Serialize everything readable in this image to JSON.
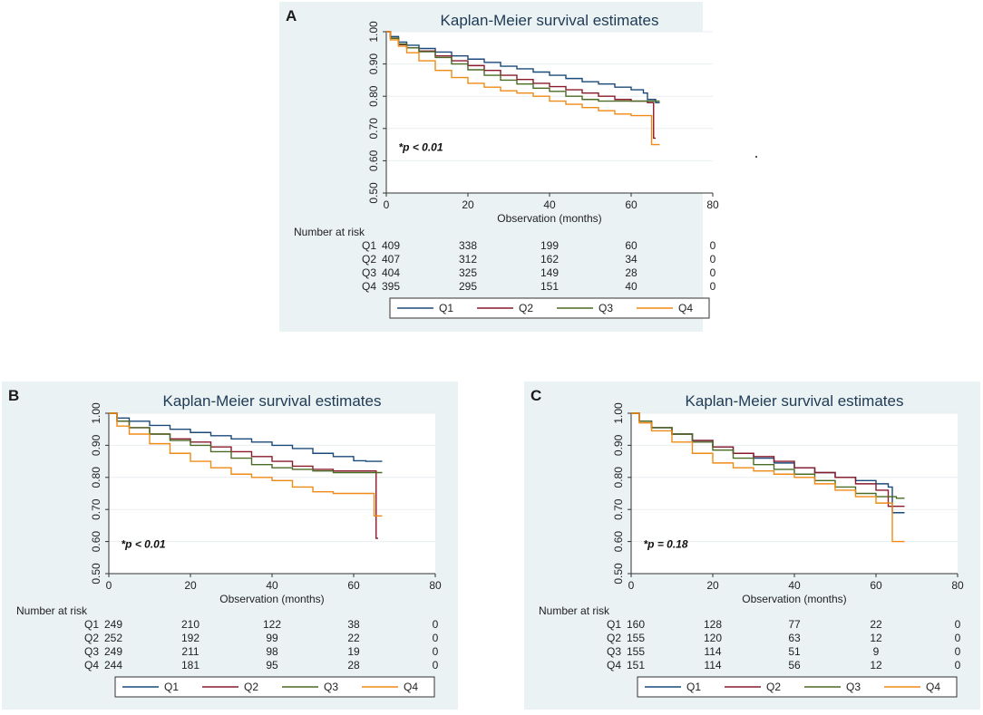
{
  "colors": {
    "Q1": "#1a4a7a",
    "Q2": "#8a1a2a",
    "Q3": "#4a6b24",
    "Q4": "#f08a14",
    "panel_bg": "#eaf2f3",
    "plot_bg": "#ffffff"
  },
  "chart_data": [
    {
      "panel": "A",
      "type": "line",
      "title": "Kaplan-Meier survival estimates",
      "xlabel": "Observation (months)",
      "ylabel": "",
      "xlim": [
        0,
        80
      ],
      "ylim": [
        0.5,
        1.0
      ],
      "xticks": [
        "0",
        "20",
        "40",
        "60",
        "80"
      ],
      "yticks": [
        "0.50",
        "0.60",
        "0.70",
        "0.80",
        "0.90",
        "1.00"
      ],
      "annotation": "*p < 0.01",
      "annotation_pos": [
        3,
        0.63
      ],
      "series": [
        {
          "name": "Q1",
          "x": [
            0,
            1,
            3,
            5,
            8,
            12,
            16,
            20,
            24,
            28,
            32,
            36,
            40,
            44,
            48,
            52,
            56,
            60,
            63,
            64,
            66,
            67
          ],
          "y": [
            1.0,
            0.985,
            0.968,
            0.958,
            0.948,
            0.937,
            0.925,
            0.915,
            0.905,
            0.893,
            0.885,
            0.875,
            0.865,
            0.855,
            0.845,
            0.838,
            0.828,
            0.82,
            0.81,
            0.79,
            0.78,
            0.78
          ]
        },
        {
          "name": "Q2",
          "x": [
            0,
            1,
            3,
            5,
            8,
            12,
            16,
            20,
            24,
            28,
            32,
            36,
            40,
            44,
            48,
            52,
            56,
            60,
            64,
            65,
            65.5,
            66
          ],
          "y": [
            1.0,
            0.98,
            0.96,
            0.95,
            0.94,
            0.925,
            0.91,
            0.895,
            0.88,
            0.865,
            0.852,
            0.84,
            0.83,
            0.82,
            0.81,
            0.8,
            0.79,
            0.785,
            0.78,
            0.78,
            0.67,
            0.67
          ]
        },
        {
          "name": "Q3",
          "x": [
            0,
            1,
            3,
            5,
            8,
            12,
            16,
            20,
            24,
            28,
            32,
            36,
            40,
            44,
            48,
            52,
            56,
            60,
            64,
            67
          ],
          "y": [
            1.0,
            0.98,
            0.962,
            0.95,
            0.938,
            0.92,
            0.9,
            0.882,
            0.865,
            0.85,
            0.838,
            0.825,
            0.815,
            0.8,
            0.79,
            0.785,
            0.785,
            0.785,
            0.785,
            0.785
          ]
        },
        {
          "name": "Q4",
          "x": [
            0,
            1,
            3,
            5,
            8,
            12,
            16,
            20,
            24,
            28,
            32,
            36,
            40,
            44,
            48,
            52,
            56,
            60,
            64,
            65,
            67
          ],
          "y": [
            1.0,
            0.975,
            0.955,
            0.935,
            0.91,
            0.88,
            0.858,
            0.84,
            0.828,
            0.817,
            0.81,
            0.8,
            0.785,
            0.775,
            0.765,
            0.755,
            0.745,
            0.74,
            0.74,
            0.65,
            0.65
          ]
        }
      ],
      "risk_table": {
        "header": "Number at risk",
        "rows": [
          {
            "label": "Q1",
            "values": [
              "409",
              "338",
              "199",
              "60",
              "0"
            ]
          },
          {
            "label": "Q2",
            "values": [
              "407",
              "312",
              "162",
              "34",
              "0"
            ]
          },
          {
            "label": "Q3",
            "values": [
              "404",
              "325",
              "149",
              "28",
              "0"
            ]
          },
          {
            "label": "Q4",
            "values": [
              "395",
              "295",
              "151",
              "40",
              "0"
            ]
          }
        ]
      },
      "legend": [
        "Q1",
        "Q2",
        "Q3",
        "Q4"
      ]
    },
    {
      "panel": "B",
      "type": "line",
      "title": "Kaplan-Meier survival estimates",
      "xlabel": "Observation (months)",
      "ylabel": "",
      "xlim": [
        0,
        80
      ],
      "ylim": [
        0.5,
        1.0
      ],
      "xticks": [
        "0",
        "20",
        "40",
        "60",
        "80"
      ],
      "yticks": [
        "0.50",
        "0.60",
        "0.70",
        "0.80",
        "0.90",
        "1.00"
      ],
      "annotation": "*p < 0.01",
      "annotation_pos": [
        3,
        0.58
      ],
      "series": [
        {
          "name": "Q1",
          "x": [
            0,
            2,
            5,
            10,
            15,
            20,
            25,
            30,
            35,
            40,
            45,
            50,
            55,
            60,
            63,
            67
          ],
          "y": [
            1.0,
            0.985,
            0.975,
            0.962,
            0.95,
            0.94,
            0.93,
            0.92,
            0.91,
            0.9,
            0.89,
            0.875,
            0.865,
            0.852,
            0.85,
            0.85
          ]
        },
        {
          "name": "Q2",
          "x": [
            0,
            2,
            5,
            10,
            15,
            20,
            25,
            30,
            35,
            40,
            45,
            50,
            55,
            60,
            65,
            65.5,
            66
          ],
          "y": [
            1.0,
            0.975,
            0.955,
            0.935,
            0.92,
            0.91,
            0.895,
            0.88,
            0.865,
            0.85,
            0.835,
            0.825,
            0.82,
            0.82,
            0.82,
            0.61,
            0.61
          ]
        },
        {
          "name": "Q3",
          "x": [
            0,
            2,
            5,
            10,
            15,
            20,
            25,
            30,
            35,
            40,
            45,
            50,
            55,
            60,
            65,
            67
          ],
          "y": [
            1.0,
            0.975,
            0.955,
            0.935,
            0.915,
            0.9,
            0.88,
            0.86,
            0.84,
            0.83,
            0.825,
            0.82,
            0.815,
            0.815,
            0.815,
            0.815
          ]
        },
        {
          "name": "Q4",
          "x": [
            0,
            2,
            5,
            10,
            15,
            20,
            25,
            30,
            35,
            40,
            45,
            50,
            55,
            60,
            64,
            65,
            67
          ],
          "y": [
            1.0,
            0.96,
            0.935,
            0.905,
            0.875,
            0.85,
            0.83,
            0.81,
            0.8,
            0.79,
            0.77,
            0.755,
            0.75,
            0.75,
            0.75,
            0.68,
            0.68
          ]
        }
      ],
      "risk_table": {
        "header": "Number at risk",
        "rows": [
          {
            "label": "Q1",
            "values": [
              "249",
              "210",
              "122",
              "38",
              "0"
            ]
          },
          {
            "label": "Q2",
            "values": [
              "252",
              "192",
              "99",
              "22",
              "0"
            ]
          },
          {
            "label": "Q3",
            "values": [
              "249",
              "211",
              "98",
              "19",
              "0"
            ]
          },
          {
            "label": "Q4",
            "values": [
              "244",
              "181",
              "95",
              "28",
              "0"
            ]
          }
        ]
      },
      "legend": [
        "Q1",
        "Q2",
        "Q3",
        "Q4"
      ]
    },
    {
      "panel": "C",
      "type": "line",
      "title": "Kaplan-Meier survival estimates",
      "xlabel": "Observation (months)",
      "ylabel": "",
      "xlim": [
        0,
        80
      ],
      "ylim": [
        0.5,
        1.0
      ],
      "xticks": [
        "0",
        "20",
        "40",
        "60",
        "80"
      ],
      "yticks": [
        "0.50",
        "0.60",
        "0.70",
        "0.80",
        "0.90",
        "1.00"
      ],
      "annotation": "*p = 0.18",
      "annotation_pos": [
        3,
        0.58
      ],
      "series": [
        {
          "name": "Q1",
          "x": [
            0,
            2,
            5,
            10,
            15,
            20,
            25,
            30,
            35,
            40,
            45,
            50,
            55,
            60,
            63,
            64,
            67
          ],
          "y": [
            1.0,
            0.975,
            0.955,
            0.935,
            0.915,
            0.895,
            0.875,
            0.86,
            0.845,
            0.83,
            0.815,
            0.8,
            0.79,
            0.78,
            0.77,
            0.69,
            0.69
          ]
        },
        {
          "name": "Q2",
          "x": [
            0,
            2,
            5,
            10,
            15,
            20,
            25,
            30,
            35,
            40,
            45,
            50,
            55,
            60,
            62,
            63,
            64,
            67
          ],
          "y": [
            1.0,
            0.975,
            0.955,
            0.935,
            0.915,
            0.895,
            0.875,
            0.865,
            0.85,
            0.83,
            0.815,
            0.8,
            0.78,
            0.76,
            0.76,
            0.71,
            0.71,
            0.71
          ]
        },
        {
          "name": "Q3",
          "x": [
            0,
            2,
            5,
            10,
            15,
            20,
            25,
            30,
            35,
            40,
            45,
            50,
            55,
            60,
            65,
            67
          ],
          "y": [
            1.0,
            0.975,
            0.955,
            0.935,
            0.91,
            0.885,
            0.86,
            0.84,
            0.825,
            0.81,
            0.79,
            0.77,
            0.75,
            0.74,
            0.735,
            0.735
          ]
        },
        {
          "name": "Q4",
          "x": [
            0,
            2,
            5,
            10,
            15,
            20,
            25,
            30,
            35,
            40,
            45,
            50,
            55,
            60,
            63,
            64,
            67
          ],
          "y": [
            1.0,
            0.97,
            0.945,
            0.91,
            0.875,
            0.845,
            0.83,
            0.82,
            0.81,
            0.8,
            0.78,
            0.76,
            0.74,
            0.72,
            0.72,
            0.6,
            0.6
          ]
        }
      ],
      "risk_table": {
        "header": "Number at risk",
        "rows": [
          {
            "label": "Q1",
            "values": [
              "160",
              "128",
              "77",
              "22",
              "0"
            ]
          },
          {
            "label": "Q2",
            "values": [
              "155",
              "120",
              "63",
              "12",
              "0"
            ]
          },
          {
            "label": "Q3",
            "values": [
              "155",
              "114",
              "51",
              "9",
              "0"
            ]
          },
          {
            "label": "Q4",
            "values": [
              "151",
              "114",
              "56",
              "12",
              "0"
            ]
          }
        ]
      },
      "legend": [
        "Q1",
        "Q2",
        "Q3",
        "Q4"
      ]
    }
  ]
}
